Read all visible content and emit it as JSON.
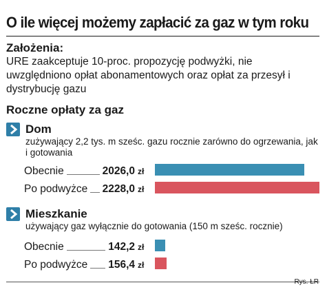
{
  "title": "O ile więcej możemy zapłacić za gaz w tym roku",
  "assumptions": {
    "heading": "Założenia:",
    "text": "URE zaakceptuje 10-proc. propozycję podwyżki, nie uwzględniono opłat abonamentowych oraz opłat za przesył i dystrybucję gazu"
  },
  "subtitle": "Roczne opłaty za gaz",
  "colors": {
    "current": "#3a8fb3",
    "after": "#d9555e",
    "section_icon": "#2f7fa8"
  },
  "chart_data": {
    "type": "bar",
    "unit": "zł",
    "xlim": [
      0,
      2228
    ],
    "groups": [
      {
        "name": "Dom",
        "description": "zużywający 2,2 tys. m sześc. gazu rocznie zarówno do ogrzewania, jak i gotowania",
        "rows": [
          {
            "label": "Obecnie",
            "value": 2026.0,
            "value_text": "2026,0",
            "color": "#3a8fb3"
          },
          {
            "label": "Po podwyżce",
            "value": 2228.0,
            "value_text": "2228,0",
            "color": "#d9555e"
          }
        ]
      },
      {
        "name": "Mieszkanie",
        "description": "używający gaz wyłącznie do gotowania (150 m sześc. rocznie)",
        "rows": [
          {
            "label": "Obecnie",
            "value": 142.2,
            "value_text": "142,2",
            "color": "#3a8fb3"
          },
          {
            "label": "Po podwyżce",
            "value": 156.4,
            "value_text": "156,4",
            "color": "#d9555e"
          }
        ]
      }
    ]
  },
  "credit": "Rys. ŁR"
}
